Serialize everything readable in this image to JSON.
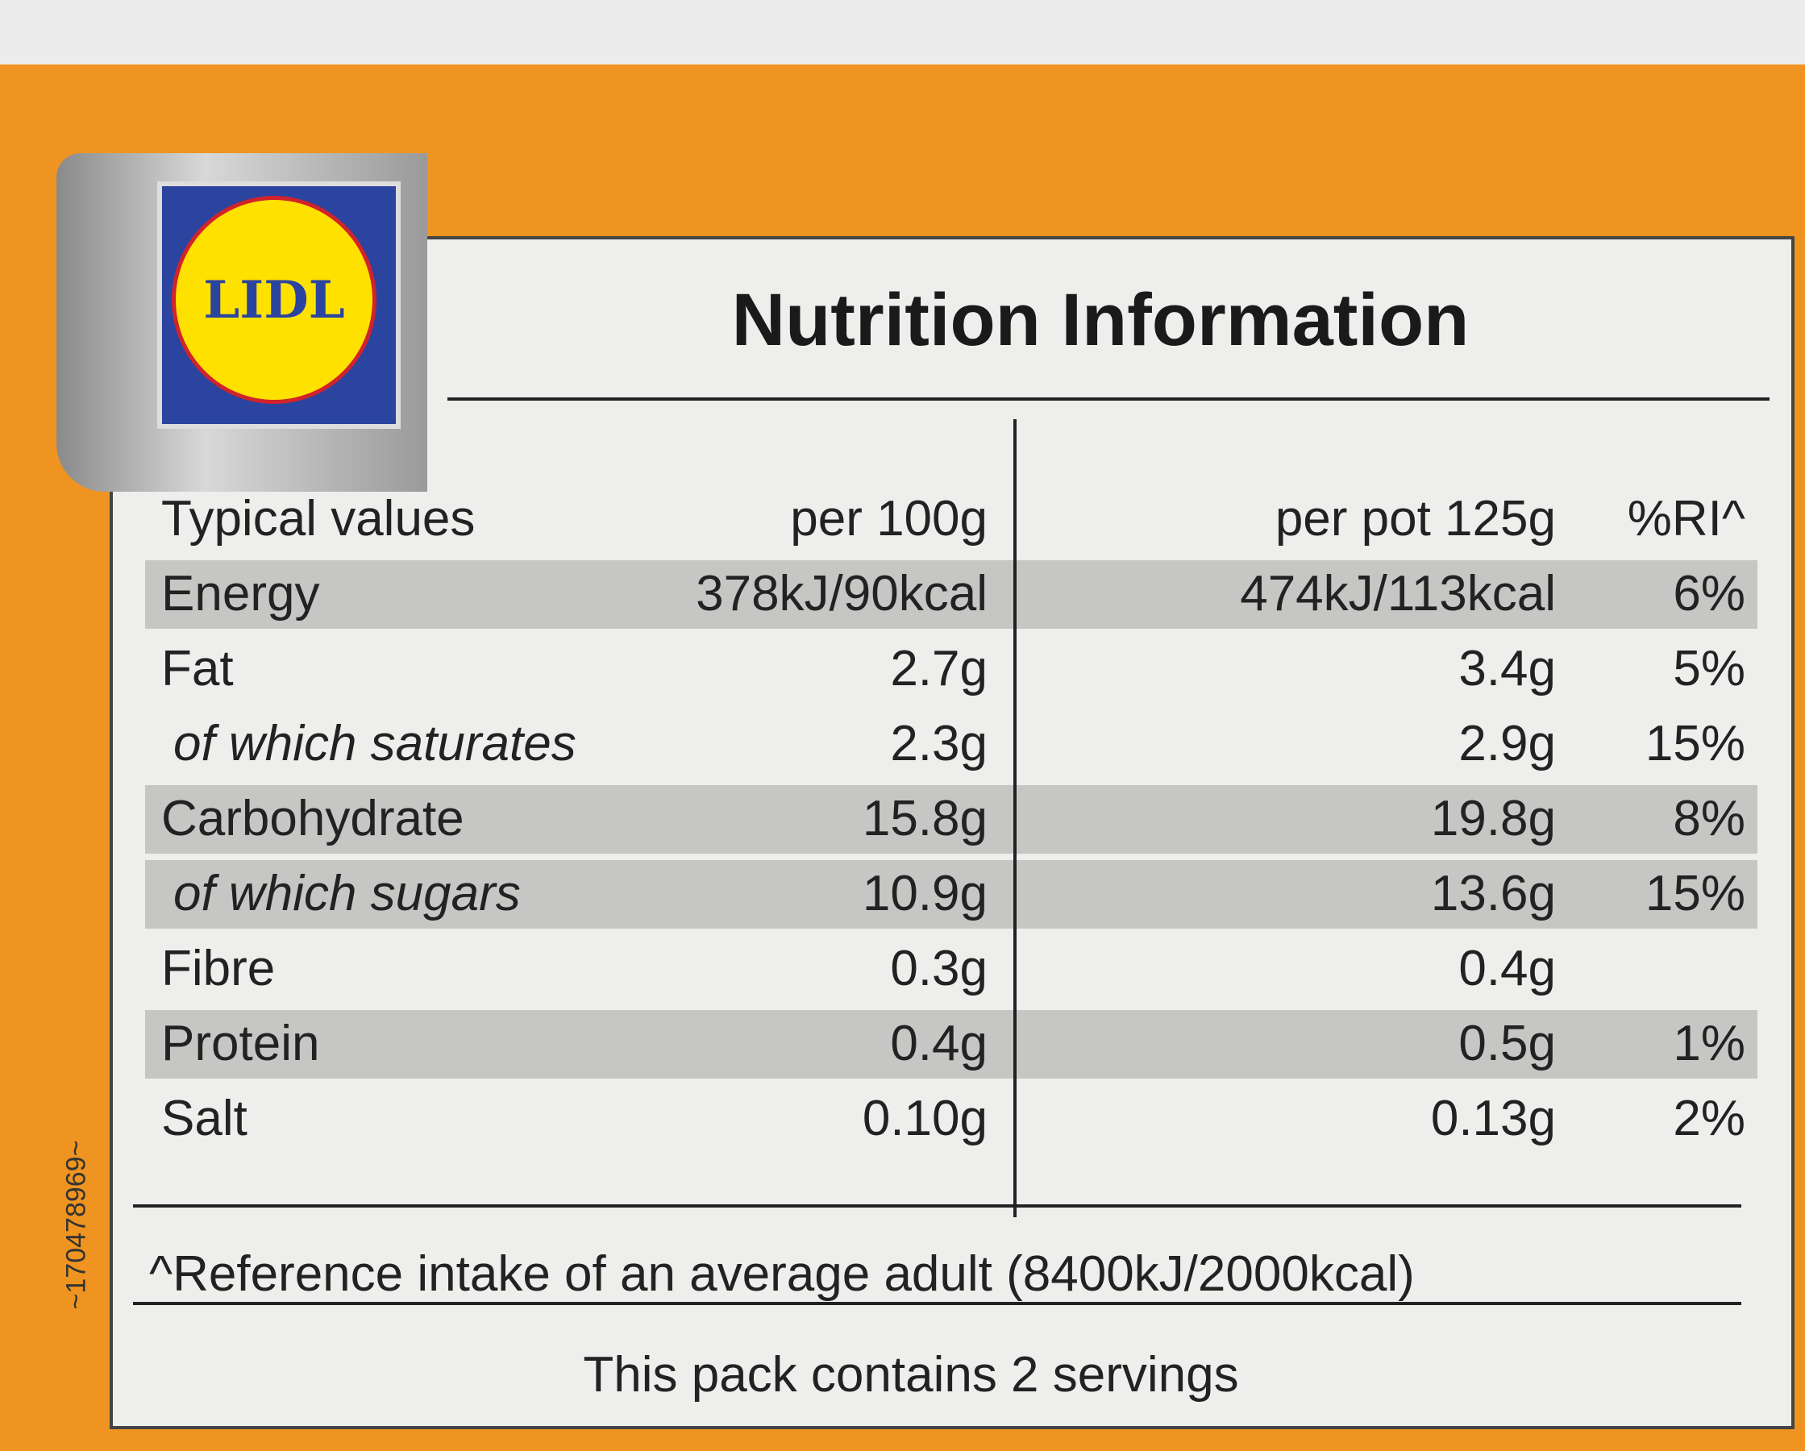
{
  "logo": "LIDL",
  "title": "Nutrition Information",
  "table": {
    "header": [
      "Typical values",
      "per 100g",
      "per pot 125g",
      "%RI^"
    ],
    "rows": [
      [
        "Energy",
        "378kJ/90kcal",
        "474kJ/113kcal",
        "6%"
      ],
      [
        "Fat",
        "2.7g",
        "3.4g",
        "5%"
      ],
      [
        "of which saturates",
        "2.3g",
        "2.9g",
        "15%"
      ],
      [
        "Carbohydrate",
        "15.8g",
        "19.8g",
        "8%"
      ],
      [
        "of which sugars",
        "10.9g",
        "13.6g",
        "15%"
      ],
      [
        "Fibre",
        "0.3g",
        "0.4g"
      ],
      [
        "Protein",
        "0.4g",
        "0.5g",
        "1%"
      ],
      [
        "Salt",
        "0.10g",
        "0.13g",
        "2%"
      ]
    ]
  },
  "footnote": "^Reference intake of an average adult (8400kJ/2000kcal)",
  "servings": "This pack contains 2 servings",
  "code": "~170478969~"
}
